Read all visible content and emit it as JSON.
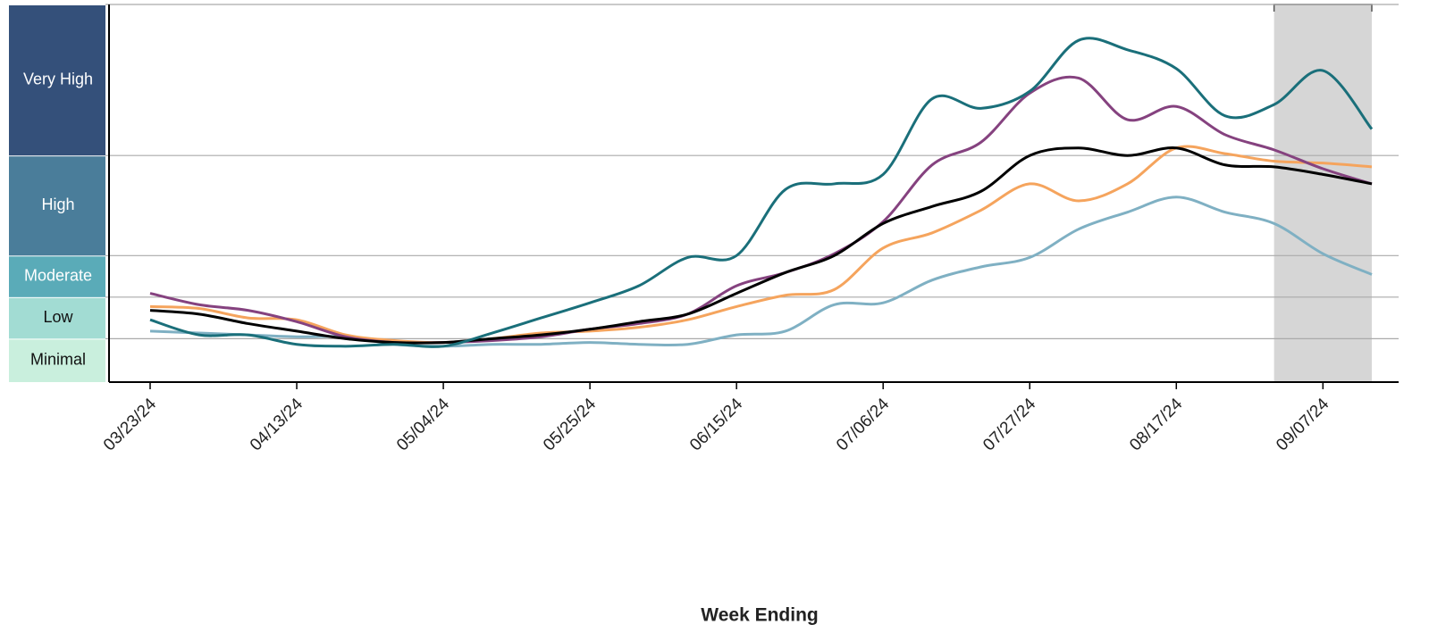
{
  "chart_data": {
    "type": "line",
    "x_label": "Week Ending",
    "categories": [
      "03/23/24",
      null,
      null,
      "04/13/24",
      null,
      null,
      "05/04/24",
      null,
      null,
      "05/25/24",
      null,
      null,
      "06/15/24",
      null,
      null,
      "07/06/24",
      null,
      null,
      "07/27/24",
      null,
      null,
      "08/17/24",
      null,
      null,
      "09/07/24",
      null
    ],
    "ylim": [
      0,
      20
    ],
    "levels": [
      {
        "label": "Minimal",
        "from": 0,
        "to": 2.3,
        "color": "#c9efdd",
        "text_color": "#111111"
      },
      {
        "label": "Low",
        "from": 2.3,
        "to": 4.5,
        "color": "#a2dcd3",
        "text_color": "#111111"
      },
      {
        "label": "Moderate",
        "from": 4.5,
        "to": 6.7,
        "color": "#5aabb8",
        "text_color": "#ffffff"
      },
      {
        "label": "High",
        "from": 6.7,
        "to": 12,
        "color": "#4a7d9a",
        "text_color": "#ffffff"
      },
      {
        "label": "Very High",
        "from": 12,
        "to": 20,
        "color": "#34507a",
        "text_color": "#ffffff"
      }
    ],
    "shaded": [
      23,
      25
    ],
    "series": [
      {
        "color": "#7fb0c3",
        "values": [
          2.7,
          2.6,
          2.5,
          2.4,
          2.4,
          2.0,
          1.9,
          2.0,
          2.0,
          2.1,
          2.0,
          2.0,
          2.5,
          2.7,
          4.1,
          4.2,
          5.4,
          6.1,
          6.6,
          8.1,
          9.0,
          9.8,
          9.0,
          8.4,
          6.8,
          5.7
        ]
      },
      {
        "color": "#f5a45d",
        "values": [
          4.0,
          3.9,
          3.4,
          3.3,
          2.5,
          2.2,
          2.1,
          2.3,
          2.6,
          2.7,
          2.9,
          3.3,
          4.0,
          4.6,
          4.9,
          7.1,
          7.9,
          9.1,
          10.5,
          9.6,
          10.5,
          12.4,
          12.1,
          11.7,
          11.6,
          11.4
        ]
      },
      {
        "color": "#85427f",
        "values": [
          4.7,
          4.1,
          3.8,
          3.2,
          2.4,
          2.1,
          2.1,
          2.2,
          2.4,
          2.8,
          3.1,
          3.6,
          5.1,
          5.8,
          6.8,
          8.5,
          11.5,
          12.7,
          15.3,
          16.1,
          13.9,
          14.6,
          13.1,
          12.3,
          11.3,
          10.5
        ]
      },
      {
        "color": "#000000",
        "values": [
          3.8,
          3.6,
          3.1,
          2.7,
          2.3,
          2.1,
          2.1,
          2.3,
          2.5,
          2.8,
          3.2,
          3.6,
          4.7,
          5.8,
          6.7,
          8.4,
          9.3,
          10.1,
          12.0,
          12.4,
          12.0,
          12.4,
          11.5,
          11.4,
          11.0,
          10.5
        ]
      },
      {
        "color": "#1a6f7a",
        "values": [
          3.3,
          2.5,
          2.5,
          2.0,
          1.9,
          2.0,
          1.9,
          2.6,
          3.4,
          4.2,
          5.1,
          6.6,
          6.7,
          10.2,
          10.5,
          11.0,
          15.0,
          14.5,
          15.4,
          18.1,
          17.6,
          16.6,
          14.1,
          14.7,
          16.5,
          13.4
        ]
      }
    ]
  }
}
